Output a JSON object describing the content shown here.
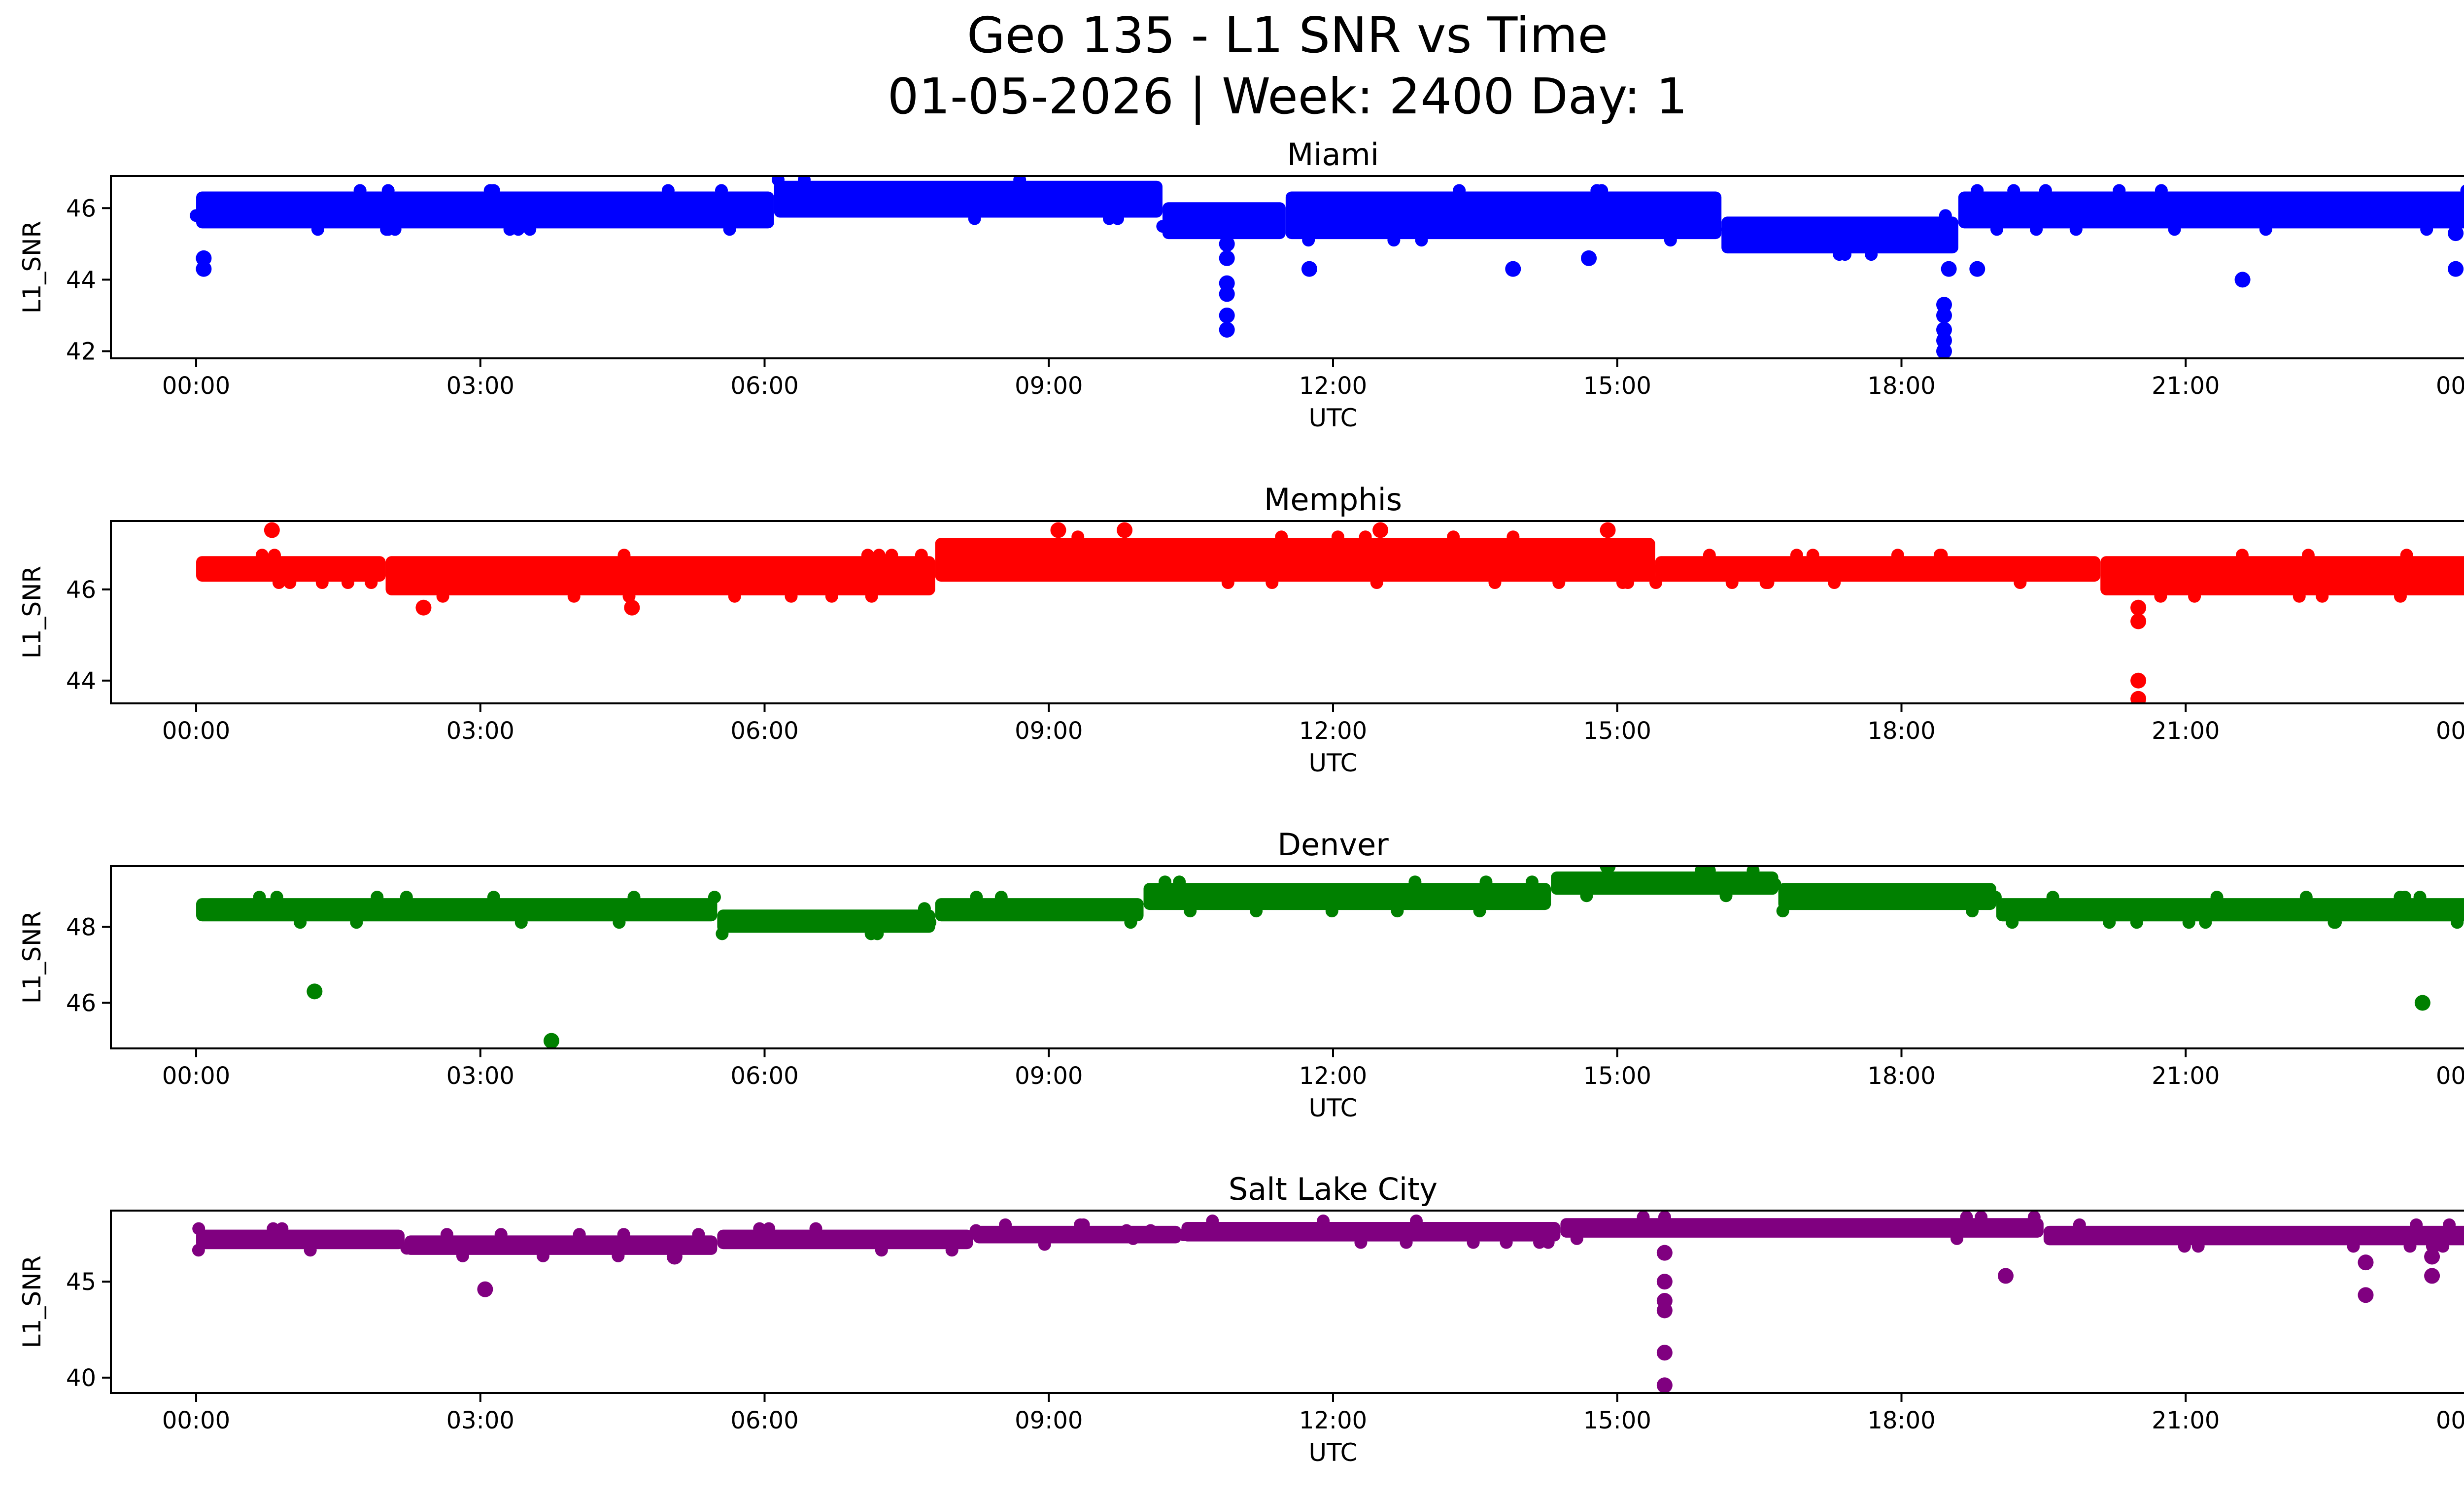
{
  "figure": {
    "title_line1": "Geo 135 - L1 SNR vs Time",
    "title_line2": "01-05-2026 | Week: 2400 Day: 1"
  },
  "chart_data": [
    {
      "type": "scatter",
      "title": "Miami",
      "xlabel": "UTC",
      "ylabel": "L1_SNR",
      "color": "#0000ff",
      "xlim": [
        -0.9,
        24.9
      ],
      "ylim": [
        41.8,
        46.9
      ],
      "xticks": [
        "00:00",
        "03:00",
        "06:00",
        "09:00",
        "12:00",
        "15:00",
        "18:00",
        "21:00",
        "00:00"
      ],
      "yticks": [
        42,
        44,
        46
      ],
      "band_segments": [
        {
          "x": [
            0,
            6.1
          ],
          "y": [
            45.6,
            46.3
          ]
        },
        {
          "x": [
            6.1,
            10.2
          ],
          "y": [
            45.9,
            46.6
          ]
        },
        {
          "x": [
            10.2,
            11.5
          ],
          "y": [
            45.3,
            46.0
          ]
        },
        {
          "x": [
            11.5,
            16.1
          ],
          "y": [
            45.3,
            46.3
          ]
        },
        {
          "x": [
            16.1,
            18.6
          ],
          "y": [
            44.9,
            45.6
          ]
        },
        {
          "x": [
            18.6,
            24.0
          ],
          "y": [
            45.6,
            46.3
          ]
        }
      ],
      "outliers": [
        {
          "x": 0.08,
          "y": 44.6
        },
        {
          "x": 0.08,
          "y": 44.3
        },
        {
          "x": 10.88,
          "y": 45.0
        },
        {
          "x": 10.88,
          "y": 44.6
        },
        {
          "x": 10.88,
          "y": 43.9
        },
        {
          "x": 10.88,
          "y": 43.6
        },
        {
          "x": 10.88,
          "y": 43.0
        },
        {
          "x": 10.88,
          "y": 42.6
        },
        {
          "x": 11.75,
          "y": 44.3
        },
        {
          "x": 13.9,
          "y": 44.3
        },
        {
          "x": 14.7,
          "y": 44.6
        },
        {
          "x": 18.45,
          "y": 43.3
        },
        {
          "x": 18.45,
          "y": 43.0
        },
        {
          "x": 18.45,
          "y": 42.6
        },
        {
          "x": 18.45,
          "y": 42.3
        },
        {
          "x": 18.45,
          "y": 42.0
        },
        {
          "x": 18.5,
          "y": 44.3
        },
        {
          "x": 18.8,
          "y": 44.3
        },
        {
          "x": 21.6,
          "y": 44.0
        },
        {
          "x": 23.85,
          "y": 45.3
        },
        {
          "x": 23.85,
          "y": 44.3
        }
      ]
    },
    {
      "type": "scatter",
      "title": "Memphis",
      "xlabel": "UTC",
      "ylabel": "L1_SNR",
      "color": "#ff0000",
      "xlim": [
        -0.9,
        24.9
      ],
      "ylim": [
        43.5,
        47.5
      ],
      "xticks": [
        "00:00",
        "03:00",
        "06:00",
        "09:00",
        "12:00",
        "15:00",
        "18:00",
        "21:00",
        "00:00"
      ],
      "yticks": [
        44,
        46
      ],
      "band_segments": [
        {
          "x": [
            0,
            2.0
          ],
          "y": [
            46.3,
            46.6
          ]
        },
        {
          "x": [
            2.0,
            7.8
          ],
          "y": [
            46.0,
            46.6
          ]
        },
        {
          "x": [
            7.8,
            15.4
          ],
          "y": [
            46.3,
            47.0
          ]
        },
        {
          "x": [
            15.4,
            20.1
          ],
          "y": [
            46.3,
            46.6
          ]
        },
        {
          "x": [
            20.1,
            24.0
          ],
          "y": [
            46.0,
            46.6
          ]
        }
      ],
      "outliers": [
        {
          "x": 0.8,
          "y": 47.3
        },
        {
          "x": 2.4,
          "y": 45.6
        },
        {
          "x": 4.6,
          "y": 45.6
        },
        {
          "x": 9.1,
          "y": 47.3
        },
        {
          "x": 9.8,
          "y": 47.3
        },
        {
          "x": 12.5,
          "y": 47.3
        },
        {
          "x": 14.9,
          "y": 47.3
        },
        {
          "x": 20.5,
          "y": 45.6
        },
        {
          "x": 20.5,
          "y": 45.3
        },
        {
          "x": 20.5,
          "y": 44.0
        },
        {
          "x": 20.5,
          "y": 43.6
        }
      ]
    },
    {
      "type": "scatter",
      "title": "Denver",
      "xlabel": "UTC",
      "ylabel": "L1_SNR",
      "color": "#008000",
      "xlim": [
        -0.9,
        24.9
      ],
      "ylim": [
        44.8,
        49.6
      ],
      "xticks": [
        "00:00",
        "03:00",
        "06:00",
        "09:00",
        "12:00",
        "15:00",
        "18:00",
        "21:00",
        "00:00"
      ],
      "yticks": [
        46,
        48
      ],
      "band_segments": [
        {
          "x": [
            0,
            5.5
          ],
          "y": [
            48.3,
            48.6
          ]
        },
        {
          "x": [
            5.5,
            7.8
          ],
          "y": [
            48.0,
            48.3
          ]
        },
        {
          "x": [
            7.8,
            10.0
          ],
          "y": [
            48.3,
            48.6
          ]
        },
        {
          "x": [
            10.0,
            14.3
          ],
          "y": [
            48.6,
            49.0
          ]
        },
        {
          "x": [
            14.3,
            16.7
          ],
          "y": [
            49.0,
            49.3
          ]
        },
        {
          "x": [
            16.7,
            19.0
          ],
          "y": [
            48.6,
            49.0
          ]
        },
        {
          "x": [
            19.0,
            24.0
          ],
          "y": [
            48.3,
            48.6
          ]
        }
      ],
      "outliers": [
        {
          "x": 1.25,
          "y": 46.3
        },
        {
          "x": 3.75,
          "y": 45.0
        },
        {
          "x": 14.9,
          "y": 49.6
        },
        {
          "x": 23.5,
          "y": 46.0
        }
      ]
    },
    {
      "type": "scatter",
      "title": "Salt Lake City",
      "xlabel": "UTC",
      "ylabel": "L1_SNR",
      "color": "#800080",
      "xlim": [
        -0.9,
        24.9
      ],
      "ylim": [
        39.2,
        48.7
      ],
      "xticks": [
        "00:00",
        "03:00",
        "06:00",
        "09:00",
        "12:00",
        "15:00",
        "18:00",
        "21:00",
        "00:00"
      ],
      "yticks": [
        40,
        45
      ],
      "band_segments": [
        {
          "x": [
            0,
            2.2
          ],
          "y": [
            47.0,
            47.4
          ]
        },
        {
          "x": [
            2.2,
            5.5
          ],
          "y": [
            46.7,
            47.1
          ]
        },
        {
          "x": [
            5.5,
            8.2
          ],
          "y": [
            47.0,
            47.4
          ]
        },
        {
          "x": [
            8.2,
            10.4
          ],
          "y": [
            47.3,
            47.6
          ]
        },
        {
          "x": [
            10.4,
            14.4
          ],
          "y": [
            47.4,
            47.8
          ]
        },
        {
          "x": [
            14.4,
            19.5
          ],
          "y": [
            47.6,
            48.0
          ]
        },
        {
          "x": [
            19.5,
            24.0
          ],
          "y": [
            47.2,
            47.6
          ]
        }
      ],
      "outliers": [
        {
          "x": 3.05,
          "y": 44.6
        },
        {
          "x": 5.05,
          "y": 46.3
        },
        {
          "x": 15.5,
          "y": 46.5
        },
        {
          "x": 15.5,
          "y": 45.0
        },
        {
          "x": 15.5,
          "y": 44.0
        },
        {
          "x": 15.5,
          "y": 43.5
        },
        {
          "x": 15.5,
          "y": 41.3
        },
        {
          "x": 15.5,
          "y": 39.6
        },
        {
          "x": 19.1,
          "y": 45.3
        },
        {
          "x": 22.9,
          "y": 46.0
        },
        {
          "x": 22.9,
          "y": 44.3
        },
        {
          "x": 23.6,
          "y": 46.3
        },
        {
          "x": 23.6,
          "y": 45.3
        }
      ]
    }
  ]
}
